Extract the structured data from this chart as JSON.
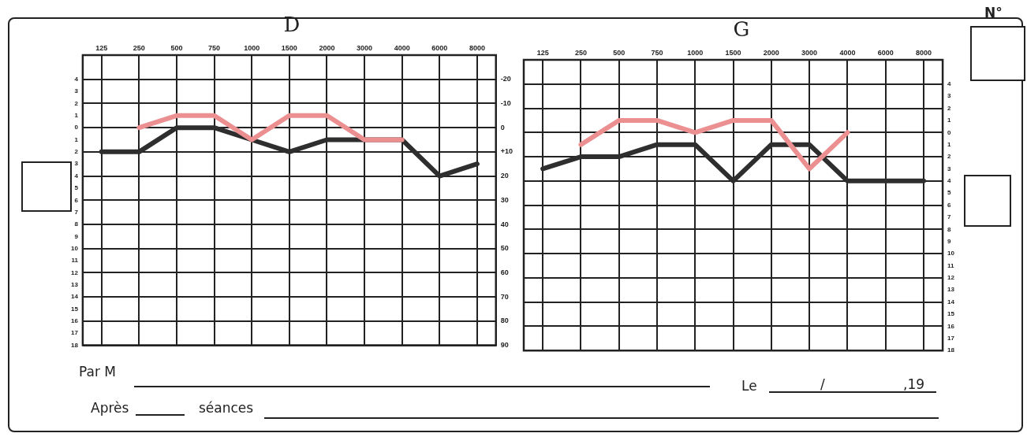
{
  "chart_data": [
    {
      "type": "line",
      "title": "D",
      "categories": [
        "125",
        "250",
        "500",
        "750",
        "1000",
        "1500",
        "2000",
        "3000",
        "4000",
        "6000",
        "8000"
      ],
      "series": [
        {
          "color": "#eb8f90",
          "axis": "y2",
          "values": [
            null,
            0,
            -5,
            -5,
            5,
            -5,
            -5,
            5,
            5,
            null,
            null
          ]
        },
        {
          "color": "#2e2e2e",
          "axis": "y2",
          "values": [
            10,
            10,
            0,
            0,
            5,
            10,
            5,
            5,
            5,
            20,
            15
          ]
        }
      ],
      "ylim": [
        18,
        -6
      ],
      "yticks": [
        {
          "value": -4,
          "label": "4"
        },
        {
          "value": -3,
          "label": "3"
        },
        {
          "value": -2,
          "label": "2"
        },
        {
          "value": -1,
          "label": "1"
        },
        0,
        1,
        2,
        3,
        4,
        5,
        6,
        7,
        8,
        9,
        10,
        11,
        12,
        13,
        14,
        15,
        16,
        17,
        18
      ],
      "y2lim": [
        90,
        -30
      ],
      "y2ticks": [
        -20,
        -10,
        0,
        {
          "value": 10,
          "label": "+10"
        },
        20,
        30,
        40,
        50,
        60,
        70,
        80,
        90
      ],
      "grid": true,
      "marker": "none",
      "annotations": [
        "N°",
        "Par M",
        "Le",
        "/",
        ",19",
        "Après",
        "séances"
      ]
    },
    {
      "type": "line",
      "title": "G",
      "categories": [
        "125",
        "250",
        "500",
        "750",
        "1000",
        "1500",
        "2000",
        "3000",
        "4000",
        "6000",
        "8000"
      ],
      "series": [
        {
          "color": "#eb8f90",
          "values": [
            null,
            1,
            -1,
            -1,
            0,
            -1,
            -1,
            3,
            0,
            null,
            null
          ]
        },
        {
          "color": "#2e2e2e",
          "values": [
            3,
            2,
            2,
            1,
            1,
            4,
            1,
            1,
            4,
            4,
            4
          ]
        }
      ],
      "ylim": [
        18,
        -6
      ],
      "yticks": [
        {
          "value": -4,
          "label": "4"
        },
        {
          "value": -3,
          "label": "3"
        },
        {
          "value": -2,
          "label": "2"
        },
        {
          "value": -1,
          "label": "1"
        },
        0,
        1,
        2,
        3,
        4,
        5,
        6,
        7,
        8,
        9,
        10,
        11,
        12,
        13,
        14,
        15,
        16,
        17,
        18
      ],
      "grid": true,
      "marker": "none"
    }
  ]
}
